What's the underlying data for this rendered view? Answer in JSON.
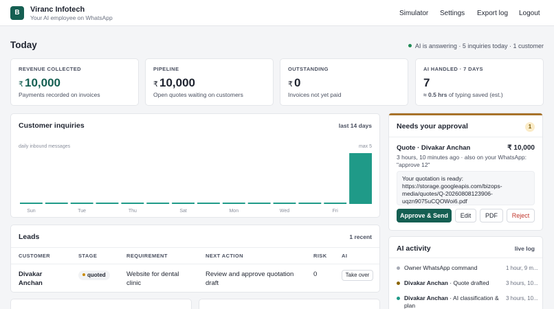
{
  "app": {
    "logo_letter": "B",
    "name": "Viranc Infotech",
    "tagline": "Your AI employee on WhatsApp"
  },
  "nav": [
    "Simulator",
    "Settings",
    "Export log",
    "Logout"
  ],
  "page": {
    "title": "Today",
    "status": "AI is answering · 5 inquiries today · 1 customer"
  },
  "stats": [
    {
      "label": "REVENUE COLLECTED",
      "currency": "₹",
      "value": "10,000",
      "note": "Payments recorded on invoices",
      "accent": "#155f52"
    },
    {
      "label": "PIPELINE",
      "currency": "₹",
      "value": "10,000",
      "note": "Open quotes waiting on customers",
      "accent": "#1f2430"
    },
    {
      "label": "OUTSTANDING",
      "currency": "₹",
      "value": "0",
      "note": "Invoices not yet paid",
      "accent": "#1f2430"
    },
    {
      "label": "AI HANDLED · 7 DAYS",
      "currency": "",
      "value": "7",
      "note_bold": "≈ 0.5 hrs",
      "note": "of typing saved (est.)",
      "accent": "#1f2430"
    }
  ],
  "inquiries": {
    "title": "Customer inquiries",
    "range": "last 14 days",
    "axis_note": "daily inbound messages",
    "max_label": "max 5"
  },
  "chart_data": {
    "type": "bar",
    "categories": [
      "Sun",
      "Mon",
      "Tue",
      "Wed",
      "Thu",
      "Fri",
      "Sat",
      "Sun",
      "Mon",
      "Tue",
      "Wed",
      "Thu",
      "Fri",
      "Sat"
    ],
    "tick_labels": [
      "Sun",
      "",
      "Tue",
      "",
      "Thu",
      "",
      "Sat",
      "",
      "Mon",
      "",
      "Wed",
      "",
      "Fri",
      ""
    ],
    "values": [
      0,
      0,
      0,
      0,
      0,
      0,
      0,
      0,
      0,
      0,
      0,
      0,
      0,
      5
    ],
    "ylim": [
      0,
      5
    ],
    "color": "#1f9a88",
    "grid": false
  },
  "leads": {
    "title": "Leads",
    "count": "1 recent",
    "columns": [
      "CUSTOMER",
      "STAGE",
      "REQUIREMENT",
      "NEXT ACTION",
      "RISK",
      "AI"
    ],
    "rows": [
      {
        "customer": "Divakar Anchan",
        "stage": "quoted",
        "requirement": "Website for dental clinic",
        "next_action": "Review and approve quotation draft",
        "risk": "0",
        "ai_action": "Take over"
      }
    ]
  },
  "approval": {
    "title": "Needs your approval",
    "count": "1",
    "item_title": "Quote · Divakar Anchan",
    "amount": "₹ 10,000",
    "meta": "3 hours, 10 minutes ago · also on your WhatsApp: \"approve 12\"",
    "message": "Your quotation is ready: https://storage.googleapis.com/bizops-media/quotes/Q-20260808123906-uqzn9075uCQOWoi6.pdf",
    "buttons": {
      "approve": "Approve & Send",
      "edit": "Edit",
      "pdf": "PDF",
      "reject": "Reject"
    }
  },
  "activity": {
    "title": "AI activity",
    "tag": "live log",
    "items": [
      {
        "who": "",
        "text": "Owner WhatsApp command",
        "time": "1 hour, 9 m...",
        "color": "#a7abb5"
      },
      {
        "who": "Divakar Anchan",
        "text": " · Quote drafted",
        "time": "3 hours, 10...",
        "color": "#8a6400"
      },
      {
        "who": "Divakar Anchan",
        "text": " · AI classification & plan",
        "time": "3 hours, 10...",
        "color": "#1f9a88"
      }
    ]
  },
  "colors": {
    "accent": "#155f52",
    "approve_button": "#155f52",
    "reject_text": "#c0352b"
  }
}
